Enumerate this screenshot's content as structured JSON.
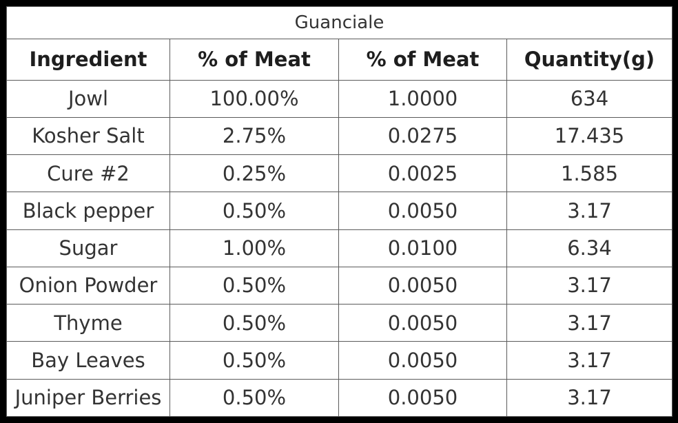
{
  "table": {
    "title": "Guanciale",
    "headers": [
      "Ingredient",
      "% of Meat",
      "% of Meat",
      "Quantity(g)"
    ],
    "rows": [
      [
        "Jowl",
        "100.00%",
        "1.0000",
        "634"
      ],
      [
        "Kosher Salt",
        "2.75%",
        "0.0275",
        "17.435"
      ],
      [
        "Cure #2",
        "0.25%",
        "0.0025",
        "1.585"
      ],
      [
        "Black pepper",
        "0.50%",
        "0.0050",
        "3.17"
      ],
      [
        "Sugar",
        "1.00%",
        "0.0100",
        "6.34"
      ],
      [
        "Onion Powder",
        "0.50%",
        "0.0050",
        "3.17"
      ],
      [
        "Thyme",
        "0.50%",
        "0.0050",
        "3.17"
      ],
      [
        "Bay Leaves",
        "0.50%",
        "0.0050",
        "3.17"
      ],
      [
        "Juniper Berries",
        "0.50%",
        "0.0050",
        "3.17"
      ]
    ]
  }
}
